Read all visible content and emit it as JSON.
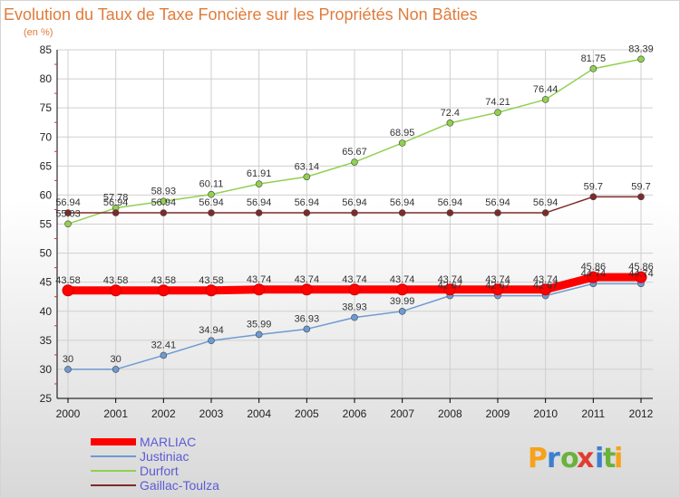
{
  "chart_data": {
    "type": "line",
    "title": "Evolution du Taux de Taxe Foncière sur les Propriétés Non Bâties",
    "subtitle": "(en %)",
    "xlabel": "",
    "ylabel": "",
    "categories": [
      "2000",
      "2001",
      "2002",
      "2003",
      "2004",
      "2005",
      "2006",
      "2007",
      "2008",
      "2009",
      "2010",
      "2011",
      "2012"
    ],
    "ylim": [
      25,
      85
    ],
    "yticks": [
      25,
      30,
      35,
      40,
      45,
      50,
      55,
      60,
      65,
      70,
      75,
      80,
      85
    ],
    "grid": true,
    "legend_position": "bottom-left",
    "series": [
      {
        "name": "MARLIAC",
        "color": "#ff0000",
        "values": [
          43.58,
          43.58,
          43.58,
          43.58,
          43.74,
          43.74,
          43.74,
          43.74,
          43.74,
          43.74,
          43.74,
          45.86,
          45.86
        ],
        "labels": [
          "43.58",
          "43.58",
          "43.58",
          "43.58",
          "43.74",
          "43.74",
          "43.74",
          "43.74",
          "43.74",
          "43.74",
          "43.74",
          "45.86",
          "45.86"
        ]
      },
      {
        "name": "Justiniac",
        "color": "#6c9bd2",
        "values": [
          30,
          30,
          32.41,
          34.94,
          35.99,
          36.93,
          38.93,
          39.99,
          42.67,
          42.67,
          42.67,
          44.74,
          44.74
        ],
        "labels": [
          "30",
          "30",
          "32.41",
          "34.94",
          "35.99",
          "36.93",
          "38.93",
          "39.99",
          "42.67",
          "42.67",
          "42.67",
          "44.74",
          "44.74"
        ]
      },
      {
        "name": "Durfort",
        "color": "#92d050",
        "values": [
          55.03,
          57.78,
          58.93,
          60.11,
          61.91,
          63.14,
          65.67,
          68.95,
          72.4,
          74.21,
          76.44,
          81.75,
          83.39
        ],
        "labels": [
          "55.03",
          "57.78",
          "58.93",
          "60.11",
          "61.91",
          "63.14",
          "65.67",
          "68.95",
          "72.4",
          "74.21",
          "76.44",
          "81.75",
          "83.39"
        ]
      },
      {
        "name": "Gaillac-Toulza",
        "color": "#7f2a2a",
        "values": [
          56.94,
          56.94,
          56.94,
          56.94,
          56.94,
          56.94,
          56.94,
          56.94,
          56.94,
          56.94,
          56.94,
          59.7,
          59.7
        ],
        "labels": [
          "56.94",
          "56.94",
          "56.94",
          "56.94",
          "56.94",
          "56.94",
          "56.94",
          "56.94",
          "56.94",
          "56.94",
          "56.94",
          "59.7",
          "59.7"
        ]
      }
    ]
  },
  "logo": {
    "text": "Proxiti"
  }
}
